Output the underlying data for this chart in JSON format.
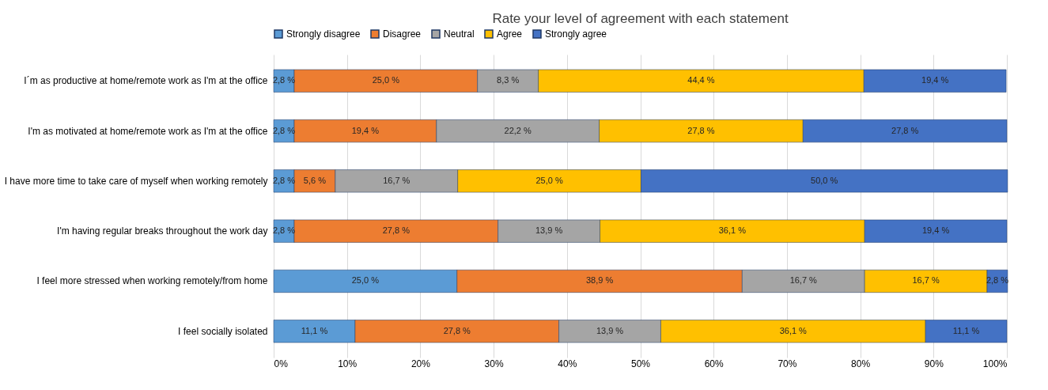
{
  "chart_data": {
    "type": "bar",
    "orientation": "horizontal",
    "stacked": true,
    "title": "Rate your level of agreement with each statement",
    "categories": [
      "I´m as productive at home/remote work as I'm at the office",
      "I'm as motivated at home/remote work as I'm at the office",
      "I have more time to take care of myself when working remotely",
      "I'm having regular breaks throughout the work day",
      "I feel more stressed when working remotely/from home",
      "I feel socially isolated"
    ],
    "series": [
      {
        "name": "Strongly disagree",
        "color": "#5b9bd5",
        "values": [
          2.8,
          2.8,
          2.8,
          2.8,
          25.0,
          11.1
        ],
        "value_labels": [
          "2,8 %",
          "2,8 %",
          "2,8 %",
          "2,8 %",
          "25,0 %",
          "11,1 %"
        ]
      },
      {
        "name": "Disagree",
        "color": "#ed7d31",
        "values": [
          25.0,
          19.4,
          5.6,
          27.8,
          38.9,
          27.8
        ],
        "value_labels": [
          "25,0 %",
          "19,4 %",
          "5,6 %",
          "27,8 %",
          "38,9 %",
          "27,8 %"
        ]
      },
      {
        "name": "Neutral",
        "color": "#a5a5a5",
        "values": [
          8.3,
          22.2,
          16.7,
          13.9,
          16.7,
          13.9
        ],
        "value_labels": [
          "8,3 %",
          "22,2 %",
          "16,7 %",
          "13,9 %",
          "16,7 %",
          "13,9 %"
        ]
      },
      {
        "name": "Agree",
        "color": "#ffc000",
        "values": [
          44.4,
          27.8,
          25.0,
          36.1,
          16.7,
          36.1
        ],
        "value_labels": [
          "44,4 %",
          "27,8 %",
          "25,0 %",
          "36,1 %",
          "16,7 %",
          "36,1 %"
        ]
      },
      {
        "name": "Strongly agree",
        "color": "#4472c4",
        "values": [
          19.4,
          27.8,
          50.0,
          19.4,
          2.8,
          11.1
        ],
        "value_labels": [
          "19,4 %",
          "27,8 %",
          "50,0 %",
          "19,4 %",
          "2,8 %",
          "11,1 %"
        ]
      }
    ],
    "xlim": [
      0,
      100
    ],
    "xticks": [
      {
        "value": 0,
        "label": "0%"
      },
      {
        "value": 10,
        "label": "10%"
      },
      {
        "value": 20,
        "label": "20%"
      },
      {
        "value": 30,
        "label": "30%"
      },
      {
        "value": 40,
        "label": "40%"
      },
      {
        "value": 50,
        "label": "50%"
      },
      {
        "value": 60,
        "label": "60%"
      },
      {
        "value": 70,
        "label": "70%"
      },
      {
        "value": 80,
        "label": "80%"
      },
      {
        "value": 90,
        "label": "90%"
      },
      {
        "value": 100,
        "label": "100%"
      }
    ],
    "grid": "x",
    "legend": "top"
  }
}
